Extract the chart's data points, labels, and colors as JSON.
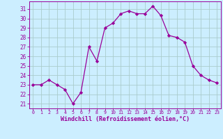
{
  "x": [
    0,
    1,
    2,
    3,
    4,
    5,
    6,
    7,
    8,
    9,
    10,
    11,
    12,
    13,
    14,
    15,
    16,
    17,
    18,
    19,
    20,
    21,
    22,
    23
  ],
  "y": [
    23.0,
    23.0,
    23.5,
    23.0,
    22.5,
    21.0,
    22.2,
    27.0,
    25.5,
    29.0,
    29.5,
    30.5,
    30.8,
    30.5,
    30.5,
    31.3,
    30.3,
    28.2,
    28.0,
    27.5,
    25.0,
    24.0,
    23.5,
    23.2
  ],
  "line_color": "#990099",
  "marker": "D",
  "marker_size": 2.2,
  "bg_color": "#cceeff",
  "grid_color": "#aacccc",
  "xlabel": "Windchill (Refroidissement éolien,°C)",
  "xlabel_color": "#990099",
  "tick_color": "#990099",
  "spine_color": "#990099",
  "ylim": [
    20.5,
    31.8
  ],
  "xlim": [
    -0.5,
    23.5
  ],
  "yticks": [
    21,
    22,
    23,
    24,
    25,
    26,
    27,
    28,
    29,
    30,
    31
  ],
  "xticks": [
    0,
    1,
    2,
    3,
    4,
    5,
    6,
    7,
    8,
    9,
    10,
    11,
    12,
    13,
    14,
    15,
    16,
    17,
    18,
    19,
    20,
    21,
    22,
    23
  ],
  "ytick_fontsize": 5.5,
  "xtick_fontsize": 4.8,
  "xlabel_fontsize": 6.0
}
